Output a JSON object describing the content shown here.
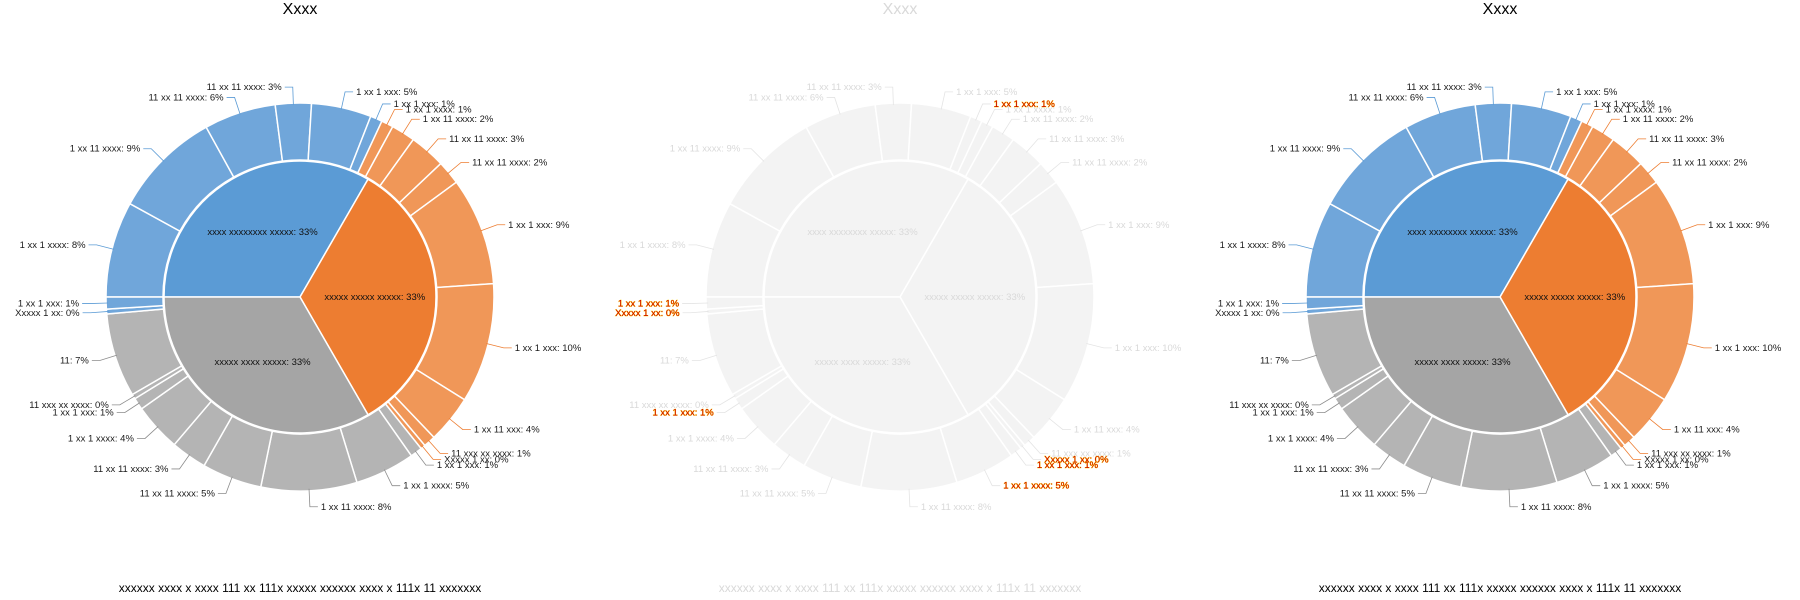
{
  "colors": {
    "blue_inner": "#5b9bd5",
    "blue_outer": "#70a6da",
    "orange_inner": "#ed7d31",
    "orange_outer": "#f09758",
    "gray_inner": "#a5a5a5",
    "gray_outer": "#b4b4b4",
    "faded_fill": "#f3f3f3",
    "leader_blue": "#5b9bd5",
    "leader_orange": "#ed7d31",
    "leader_gray": "#8c8c8c"
  },
  "chart_data": [
    {
      "type": "pie",
      "subtype": "sunburst",
      "state": "normal",
      "title": "Xxxx",
      "caption": "xxxxxx xxxx x xxxx 111 xx 111x xxxxx xxxxxx xxxx x 111x 11 xxxxxxx",
      "inner": [
        {
          "label": "xxxx xxxxxxxx xxxxx: 33%",
          "value": 33,
          "group": "blue"
        },
        {
          "label": "xxxxx xxxxx xxxxx: 33%",
          "value": 33,
          "group": "orange"
        },
        {
          "label": "xxxxx xxxx xxxxx: 33%",
          "value": 33,
          "group": "gray"
        }
      ],
      "outer": [
        {
          "label": "1 xx 1 xxxx: 8%",
          "value": 8,
          "group": "blue"
        },
        {
          "label": "1 xx 11 xxxx: 9%",
          "value": 9,
          "group": "blue"
        },
        {
          "label": "11 xx 11 xxxx: 6%",
          "value": 6,
          "group": "blue"
        },
        {
          "label": "11 xx 11 xxxx: 3%",
          "value": 3,
          "group": "blue"
        },
        {
          "label": "1 xx 1 xxx: 5%",
          "value": 5,
          "group": "blue"
        },
        {
          "label": "1 xx 1 xxx: 1%",
          "value": 1,
          "group": "blue"
        },
        {
          "label": "1 xx 1 xxxx: 1%",
          "value": 1,
          "group": "orange"
        },
        {
          "label": "1 xx 11 xxxx: 2%",
          "value": 2,
          "group": "orange"
        },
        {
          "label": "11 xx 11 xxxx: 3%",
          "value": 3,
          "group": "orange"
        },
        {
          "label": "11 xx 11 xxxx: 2%",
          "value": 2,
          "group": "orange"
        },
        {
          "label": "1 xx 1 xxx: 9%",
          "value": 9,
          "group": "orange"
        },
        {
          "label": "1 xx 1 xxx: 10%",
          "value": 10,
          "group": "orange"
        },
        {
          "label": "1 xx 11 xxx: 4%",
          "value": 4,
          "group": "orange"
        },
        {
          "label": "11 xxx xx xxxx: 1%",
          "value": 1,
          "group": "orange"
        },
        {
          "label": "Xxxxx 1 xx: 0%",
          "value": 0.4,
          "group": "orange"
        },
        {
          "label": "1 xx 1 xxx: 1%",
          "value": 1,
          "group": "gray"
        },
        {
          "label": "1 xx 1 xxxx: 5%",
          "value": 5,
          "group": "gray"
        },
        {
          "label": "1 xx 11 xxxx: 8%",
          "value": 8,
          "group": "gray"
        },
        {
          "label": "11 xx 11 xxxx: 5%",
          "value": 5,
          "group": "gray"
        },
        {
          "label": "11 xx 11 xxxx: 3%",
          "value": 3,
          "group": "gray"
        },
        {
          "label": "1 xx 1 xxxx: 4%",
          "value": 4,
          "group": "gray"
        },
        {
          "label": "1 xx 1 xxx: 1%",
          "value": 1,
          "group": "gray"
        },
        {
          "label": "11 xxx xx xxxx: 0%",
          "value": 0.4,
          "group": "gray"
        },
        {
          "label": "11: 7%",
          "value": 7,
          "group": "gray"
        },
        {
          "label": "Xxxxx 1 xx: 0%",
          "value": 0.4,
          "group": "blue"
        },
        {
          "label": "1 xx 1 xxx: 1%",
          "value": 1,
          "group": "blue"
        }
      ]
    },
    {
      "type": "pie",
      "subtype": "sunburst",
      "state": "faded",
      "title": "Xxxx",
      "caption": "xxxxxx xxxx x xxxx 111 xx 111x xxxxx xxxxxx xxxx x 111x 11 xxxxxxx",
      "highlighted_labels": [
        "Xxxxx 1 xx: 0%",
        "1 xx 1 xxx: 1%",
        "1 xx 1 xxxx: 5%"
      ],
      "inner": [
        {
          "label": "xxxx xxxxxxxx xxxxx: 33%",
          "value": 33,
          "group": "blue"
        },
        {
          "label": "xxxxx xxxxx xxxxx: 33%",
          "value": 33,
          "group": "orange"
        },
        {
          "label": "xxxxx xxxx xxxxx: 33%",
          "value": 33,
          "group": "gray"
        }
      ],
      "outer": [
        {
          "label": "1 xx 1 xxxx: 8%",
          "value": 8,
          "group": "blue"
        },
        {
          "label": "1 xx 11 xxxx: 9%",
          "value": 9,
          "group": "blue"
        },
        {
          "label": "11 xx 11 xxxx: 6%",
          "value": 6,
          "group": "blue"
        },
        {
          "label": "11 xx 11 xxxx: 3%",
          "value": 3,
          "group": "blue"
        },
        {
          "label": "1 xx 1 xxx: 5%",
          "value": 5,
          "group": "blue"
        },
        {
          "label": "1 xx 1 xxx: 1%",
          "value": 1,
          "group": "blue"
        },
        {
          "label": "1 xx 1 xxxx: 1%",
          "value": 1,
          "group": "orange"
        },
        {
          "label": "1 xx 11 xxxx: 2%",
          "value": 2,
          "group": "orange"
        },
        {
          "label": "11 xx 11 xxxx: 3%",
          "value": 3,
          "group": "orange"
        },
        {
          "label": "11 xx 11 xxxx: 2%",
          "value": 2,
          "group": "orange"
        },
        {
          "label": "1 xx 1 xxx: 9%",
          "value": 9,
          "group": "orange"
        },
        {
          "label": "1 xx 1 xxx: 10%",
          "value": 10,
          "group": "orange"
        },
        {
          "label": "1 xx 11 xxx: 4%",
          "value": 4,
          "group": "orange"
        },
        {
          "label": "11 xxx xx xxxx: 1%",
          "value": 1,
          "group": "orange"
        },
        {
          "label": "Xxxxx 1 xx: 0%",
          "value": 0.4,
          "group": "orange"
        },
        {
          "label": "1 xx 1 xxx: 1%",
          "value": 1,
          "group": "gray"
        },
        {
          "label": "1 xx 1 xxxx: 5%",
          "value": 5,
          "group": "gray"
        },
        {
          "label": "1 xx 11 xxxx: 8%",
          "value": 8,
          "group": "gray"
        },
        {
          "label": "11 xx 11 xxxx: 5%",
          "value": 5,
          "group": "gray"
        },
        {
          "label": "11 xx 11 xxxx: 3%",
          "value": 3,
          "group": "gray"
        },
        {
          "label": "1 xx 1 xxxx: 4%",
          "value": 4,
          "group": "gray"
        },
        {
          "label": "1 xx 1 xxx: 1%",
          "value": 1,
          "group": "gray"
        },
        {
          "label": "11 xxx xx xxxx: 0%",
          "value": 0.4,
          "group": "gray"
        },
        {
          "label": "11: 7%",
          "value": 7,
          "group": "gray"
        },
        {
          "label": "Xxxxx 1 xx: 0%",
          "value": 0.4,
          "group": "blue"
        },
        {
          "label": "1 xx 1 xxx: 1%",
          "value": 1,
          "group": "blue"
        }
      ]
    },
    {
      "type": "pie",
      "subtype": "sunburst",
      "state": "normal",
      "title": "Xxxx",
      "caption": "xxxxxx xxxx x xxxx 111 xx 111x xxxxx xxxxxx xxxx x 111x 11 xxxxxxx",
      "inner": [
        {
          "label": "xxxx xxxxxxxx xxxxx: 33%",
          "value": 33,
          "group": "blue"
        },
        {
          "label": "xxxxx xxxxx xxxxx: 33%",
          "value": 33,
          "group": "orange"
        },
        {
          "label": "xxxxx xxxx xxxxx: 33%",
          "value": 33,
          "group": "gray"
        }
      ],
      "outer": [
        {
          "label": "1 xx 1 xxxx: 8%",
          "value": 8,
          "group": "blue"
        },
        {
          "label": "1 xx 11 xxxx: 9%",
          "value": 9,
          "group": "blue"
        },
        {
          "label": "11 xx 11 xxxx: 6%",
          "value": 6,
          "group": "blue"
        },
        {
          "label": "11 xx 11 xxxx: 3%",
          "value": 3,
          "group": "blue"
        },
        {
          "label": "1 xx 1 xxx: 5%",
          "value": 5,
          "group": "blue"
        },
        {
          "label": "1 xx 1 xxx: 1%",
          "value": 1,
          "group": "blue"
        },
        {
          "label": "1 xx 1 xxxx: 1%",
          "value": 1,
          "group": "orange"
        },
        {
          "label": "1 xx 11 xxxx: 2%",
          "value": 2,
          "group": "orange"
        },
        {
          "label": "11 xx 11 xxxx: 3%",
          "value": 3,
          "group": "orange"
        },
        {
          "label": "11 xx 11 xxxx: 2%",
          "value": 2,
          "group": "orange"
        },
        {
          "label": "1 xx 1 xxx: 9%",
          "value": 9,
          "group": "orange"
        },
        {
          "label": "1 xx 1 xxx: 10%",
          "value": 10,
          "group": "orange"
        },
        {
          "label": "1 xx 11 xxx: 4%",
          "value": 4,
          "group": "orange"
        },
        {
          "label": "11 xxx xx xxxx: 1%",
          "value": 1,
          "group": "orange"
        },
        {
          "label": "Xxxxx 1 xx: 0%",
          "value": 0.4,
          "group": "orange"
        },
        {
          "label": "1 xx 1 xxx: 1%",
          "value": 1,
          "group": "gray"
        },
        {
          "label": "1 xx 1 xxxx: 5%",
          "value": 5,
          "group": "gray"
        },
        {
          "label": "1 xx 11 xxxx: 8%",
          "value": 8,
          "group": "gray"
        },
        {
          "label": "11 xx 11 xxxx: 5%",
          "value": 5,
          "group": "gray"
        },
        {
          "label": "11 xx 11 xxxx: 3%",
          "value": 3,
          "group": "gray"
        },
        {
          "label": "1 xx 1 xxxx: 4%",
          "value": 4,
          "group": "gray"
        },
        {
          "label": "1 xx 1 xxx: 1%",
          "value": 1,
          "group": "gray"
        },
        {
          "label": "11 xxx xx xxxx: 0%",
          "value": 0.4,
          "group": "gray"
        },
        {
          "label": "11: 7%",
          "value": 7,
          "group": "gray"
        },
        {
          "label": "Xxxxx 1 xx: 0%",
          "value": 0.4,
          "group": "blue"
        },
        {
          "label": "1 xx 1 xxx: 1%",
          "value": 1,
          "group": "blue"
        }
      ]
    }
  ]
}
